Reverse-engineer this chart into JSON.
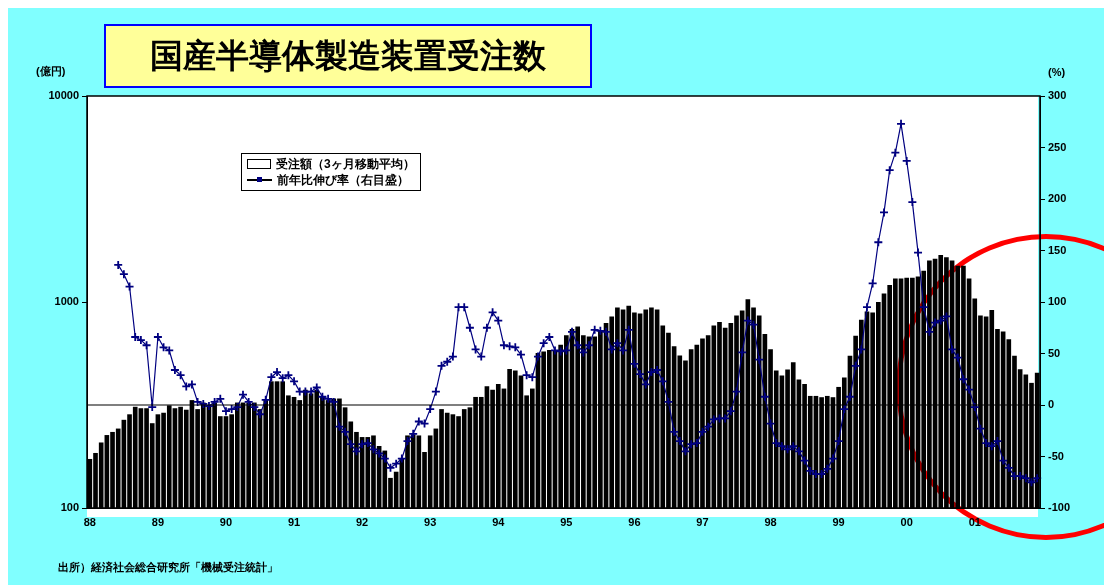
{
  "chart_data": {
    "type": "bar",
    "title": "国産半導体製造装置受注数",
    "ylabel": "(億円)",
    "y2label": "(%)",
    "categories": [
      "88",
      null,
      null,
      null,
      null,
      null,
      null,
      null,
      null,
      null,
      null,
      null,
      "89",
      null,
      null,
      null,
      null,
      null,
      null,
      null,
      null,
      null,
      null,
      null,
      "90",
      null,
      null,
      null,
      null,
      null,
      null,
      null,
      null,
      null,
      null,
      null,
      "91",
      null,
      null,
      null,
      null,
      null,
      null,
      null,
      null,
      null,
      null,
      null,
      "92",
      null,
      null,
      null,
      null,
      null,
      null,
      null,
      null,
      null,
      null,
      null,
      "93",
      null,
      null,
      null,
      null,
      null,
      null,
      null,
      null,
      null,
      null,
      null,
      "94",
      null,
      null,
      null,
      null,
      null,
      null,
      null,
      null,
      null,
      null,
      null,
      "95",
      null,
      null,
      null,
      null,
      null,
      null,
      null,
      null,
      null,
      null,
      null,
      "96",
      null,
      null,
      null,
      null,
      null,
      null,
      null,
      null,
      null,
      null,
      null,
      "97",
      null,
      null,
      null,
      null,
      null,
      null,
      null,
      null,
      null,
      null,
      null,
      "98",
      null,
      null,
      null,
      null,
      null,
      null,
      null,
      null,
      null,
      null,
      null,
      "99",
      null,
      null,
      null,
      null,
      null,
      null,
      null,
      null,
      null,
      null,
      null,
      "00",
      null,
      null,
      null,
      null,
      null,
      null,
      null,
      null,
      null,
      null,
      null,
      "01",
      null,
      null,
      null,
      null,
      null,
      null,
      null,
      null,
      null,
      null,
      null
    ],
    "series": [
      {
        "name": "受注額（3ヶ月移動平均）",
        "color": "#000000",
        "values": [
          173,
          185,
          208,
          226,
          234,
          243,
          268,
          285,
          310,
          305,
          305,
          258,
          285,
          290,
          315,
          305,
          310,
          300,
          334,
          302,
          325,
          315,
          325,
          279,
          279,
          285,
          325,
          325,
          325,
          325,
          302,
          334,
          412,
          412,
          412,
          352,
          346,
          334,
          375,
          360,
          375,
          346,
          334,
          340,
          340,
          308,
          263,
          234,
          221,
          221,
          225,
          200,
          190,
          140,
          150,
          175,
          225,
          228,
          225,
          187,
          225,
          243,
          302,
          290,
          285,
          279,
          302,
          308,
          346,
          346,
          390,
          375,
          400,
          380,
          473,
          465,
          440,
          352,
          380,
          565,
          575,
          585,
          585,
          620,
          690,
          740,
          760,
          690,
          680,
          680,
          730,
          790,
          850,
          940,
          920,
          960,
          890,
          880,
          920,
          940,
          920,
          770,
          710,
          610,
          550,
          520,
          590,
          620,
          665,
          690,
          770,
          800,
          750,
          790,
          860,
          910,
          1030,
          940,
          860,
          700,
          590,
          465,
          440,
          470,
          510,
          420,
          400,
          350,
          350,
          345,
          350,
          345,
          387,
          430,
          548,
          685,
          820,
          900,
          890,
          1000,
          1100,
          1210,
          1300,
          1300,
          1310,
          1310,
          1330,
          1420,
          1590,
          1620,
          1690,
          1650,
          1590,
          1500,
          1500,
          1300,
          1040,
          860,
          850,
          915,
          740,
          720,
          660,
          548,
          471,
          445,
          405,
          454
        ]
      },
      {
        "name": "前年比伸び率（右目盛）",
        "type": "line",
        "axis": "y2",
        "color": "#000080",
        "marker": "cross",
        "values": [
          null,
          null,
          null,
          null,
          null,
          136,
          127,
          115,
          66,
          63,
          58,
          -2,
          66,
          56,
          53,
          34,
          29,
          18,
          20,
          3,
          1,
          -1,
          3,
          6,
          -6,
          -4,
          -2,
          10,
          3,
          -2,
          -9,
          5,
          27,
          32,
          26,
          29,
          23,
          13,
          13,
          13,
          17,
          8,
          6,
          3,
          -21,
          -26,
          -38,
          -45,
          -38,
          -37,
          -43,
          -47,
          -52,
          -61,
          -57,
          -52,
          -35,
          -28,
          -16,
          -18,
          -4,
          13,
          38,
          42,
          47,
          95,
          95,
          75,
          54,
          47,
          75,
          90,
          82,
          58,
          57,
          56,
          49,
          29,
          27,
          47,
          60,
          66,
          53,
          52,
          53,
          71,
          58,
          51,
          58,
          73,
          72,
          71,
          54,
          60,
          53,
          73,
          40,
          30,
          20,
          32,
          34,
          23,
          3,
          -26,
          -35,
          -45,
          -38,
          -37,
          -26,
          -21,
          -14,
          -13,
          -13,
          -6,
          13,
          51,
          82,
          78,
          44,
          8,
          -18,
          -37,
          -40,
          -43,
          -40,
          -45,
          -54,
          -64,
          -67,
          -67,
          -62,
          -52,
          -35,
          -4,
          8,
          38,
          54,
          95,
          118,
          158,
          187,
          228,
          245,
          273,
          237,
          197,
          148,
          95,
          71,
          80,
          82,
          86,
          54,
          46,
          25,
          15,
          -2,
          -23,
          -37,
          -40,
          -35,
          -54,
          -61,
          -69,
          -69,
          -71,
          -75,
          -71
        ]
      }
    ],
    "log": "y",
    "ylim": [
      100,
      10000
    ],
    "yticks": [
      100,
      1000,
      10000
    ],
    "y2lim": [
      -100,
      300
    ],
    "y2ticks": [
      -100,
      -50,
      0,
      50,
      100,
      150,
      200,
      250,
      300
    ],
    "ref_lines": [
      {
        "axis": "y2",
        "value": 0,
        "color": "#000000"
      }
    ],
    "grid": false,
    "legend": "top left",
    "annotations": [
      "出所）経済社会総合研究所「機械受注統計」"
    ]
  }
}
